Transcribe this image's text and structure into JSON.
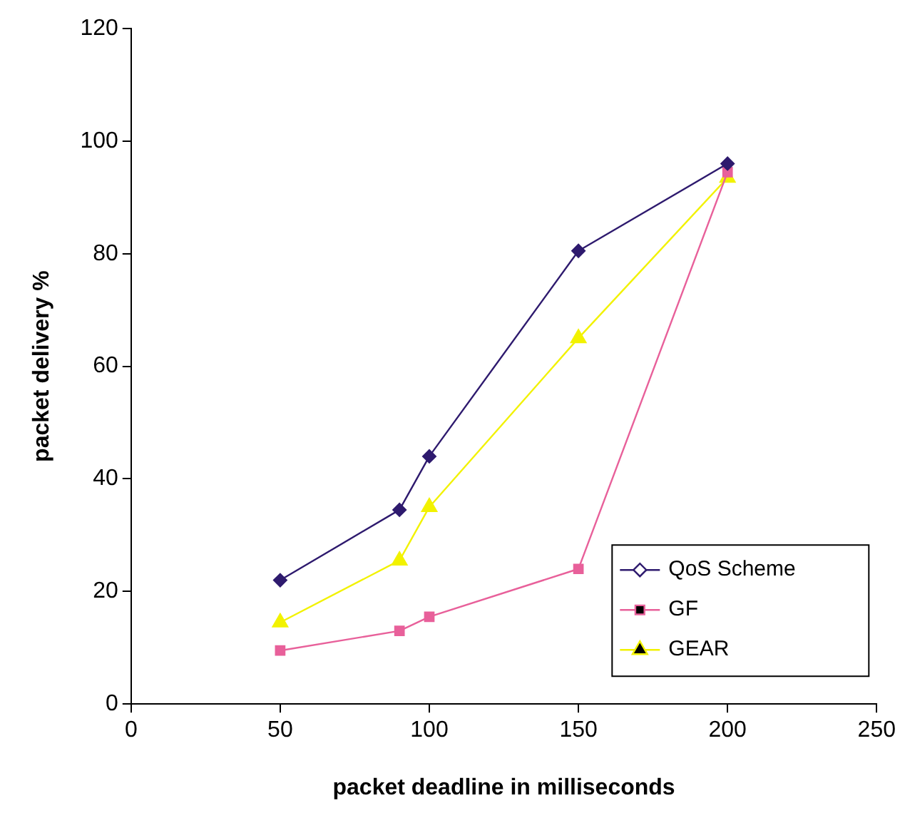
{
  "chart_data": {
    "type": "line",
    "xlabel": "packet deadline in milliseconds",
    "ylabel": "packet delivery %",
    "x": [
      50,
      90,
      100,
      150,
      200
    ],
    "series": [
      {
        "name": "QoS Scheme",
        "color": "#2e1a6e",
        "marker": "diamond",
        "values": [
          22,
          34.5,
          44,
          80.5,
          96
        ]
      },
      {
        "name": "GF",
        "color": "#e8609a",
        "marker": "square",
        "values": [
          9.5,
          13,
          15.5,
          24,
          94.5
        ]
      },
      {
        "name": "GEAR",
        "color": "#f2f200",
        "marker": "triangle",
        "values": [
          14.5,
          25.5,
          35,
          65,
          93.5
        ]
      }
    ],
    "xlim": [
      0,
      250
    ],
    "xticks": [
      0,
      50,
      100,
      150,
      200,
      250
    ],
    "ylim": [
      0,
      120
    ],
    "yticks": [
      0,
      20,
      40,
      60,
      80,
      100,
      120
    ],
    "grid": false,
    "legend": "bottom right"
  }
}
